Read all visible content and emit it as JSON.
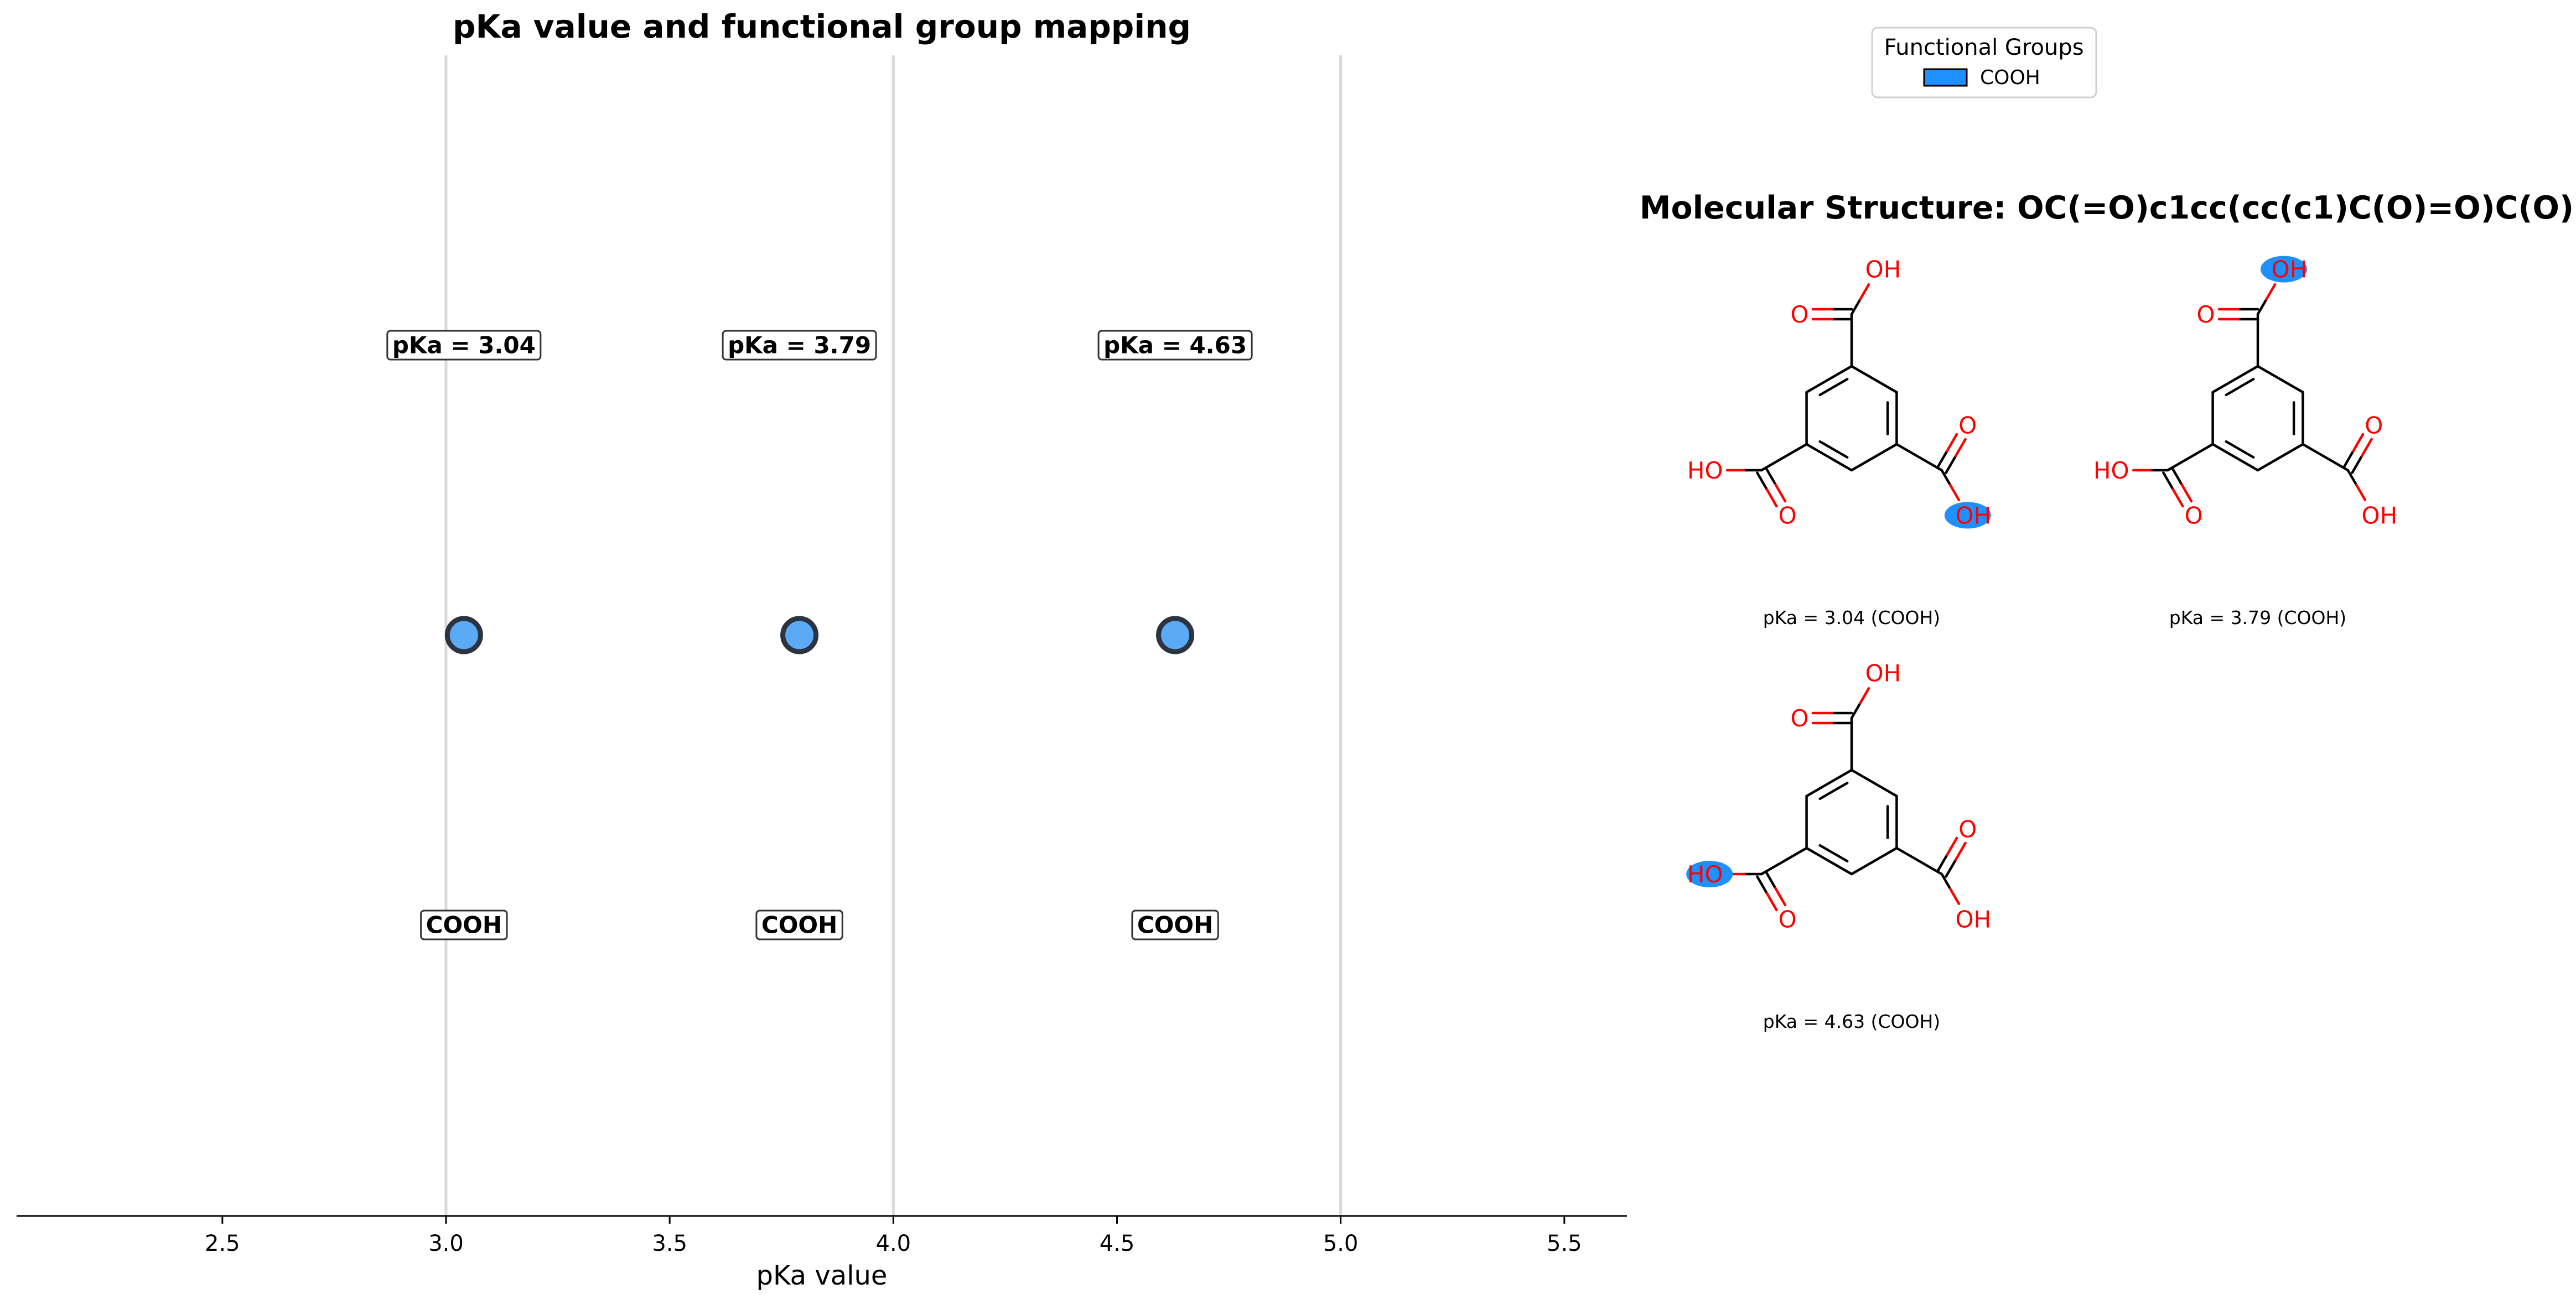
{
  "chart_data": {
    "type": "scatter",
    "title": "pKa value and functional group mapping",
    "xlabel": "pKa value",
    "ylabel": "",
    "xlim": [
      2.04,
      5.64
    ],
    "xticks": [
      "2.5",
      "3.0",
      "3.5",
      "4.0",
      "4.5",
      "5.0",
      "5.5"
    ],
    "xtick_values": [
      2.5,
      3.0,
      3.5,
      4.0,
      4.5,
      5.0,
      5.5
    ],
    "vlines": [
      3.0,
      4.0,
      5.0
    ],
    "grid": false,
    "legend": {
      "title": "Functional Groups",
      "placement": "top-right",
      "entries": [
        {
          "label": "COOH",
          "color": "#1e90ff"
        }
      ]
    },
    "points": [
      {
        "x": 3.04,
        "group": "COOH",
        "value_label": "pKa = 3.04",
        "group_label": "COOH"
      },
      {
        "x": 3.79,
        "group": "COOH",
        "value_label": "pKa = 3.79",
        "group_label": "COOH"
      },
      {
        "x": 4.63,
        "group": "COOH",
        "value_label": "pKa = 4.63",
        "group_label": "COOH"
      }
    ]
  },
  "structure_panel": {
    "title": "Molecular Structure: OC(=O)c1cc(cc(c1)C(O)=O)C(O)=O",
    "atom_labels": {
      "o": "O",
      "oh": "OH",
      "ho": "HO"
    },
    "panels": [
      {
        "caption": "pKa = 3.04 (COOH)",
        "highlight": "right-oh"
      },
      {
        "caption": "pKa = 3.79 (COOH)",
        "highlight": "top-oh"
      },
      {
        "caption": "pKa = 4.63 (COOH)",
        "highlight": "left-ho"
      }
    ]
  },
  "colors": {
    "point_fill": "#5aaaf5",
    "point_edge": "#2b3440",
    "highlight": "#1e90ff",
    "atom": "#ff0000",
    "vline": "#d9d9d9"
  }
}
